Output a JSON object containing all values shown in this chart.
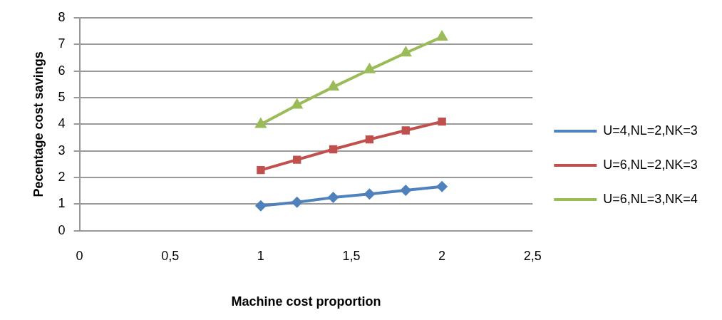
{
  "chart_data": {
    "type": "line",
    "xlabel": "Machine cost proportion",
    "ylabel": "Pecentage cost savings",
    "x": [
      1,
      1.2,
      1.4,
      1.6,
      1.8,
      2
    ],
    "series": [
      {
        "name": "U=4,NL=2,NK=3",
        "color": "#4f81bd",
        "marker": "diamond",
        "values": [
          0.94,
          1.07,
          1.25,
          1.38,
          1.52,
          1.66
        ]
      },
      {
        "name": "U=6,NL=2,NK=3",
        "color": "#c0504d",
        "marker": "square",
        "values": [
          2.28,
          2.67,
          3.06,
          3.43,
          3.77,
          4.1
        ]
      },
      {
        "name": "U=6,NL=3,NK=4",
        "color": "#9bbb59",
        "marker": "triangle",
        "values": [
          4.0,
          4.72,
          5.4,
          6.05,
          6.68,
          7.28
        ]
      }
    ],
    "xlim": [
      0,
      2.5
    ],
    "xticks": [
      0,
      {
        "value": 0.5,
        "label": "0,5"
      },
      1,
      {
        "value": 1.5,
        "label": "1,5"
      },
      2,
      {
        "value": 2.5,
        "label": "2,5"
      }
    ],
    "ylim": [
      0,
      8
    ],
    "yticks": [
      0,
      1,
      2,
      3,
      4,
      5,
      6,
      7,
      8
    ],
    "grid": "y",
    "legend": "right"
  }
}
